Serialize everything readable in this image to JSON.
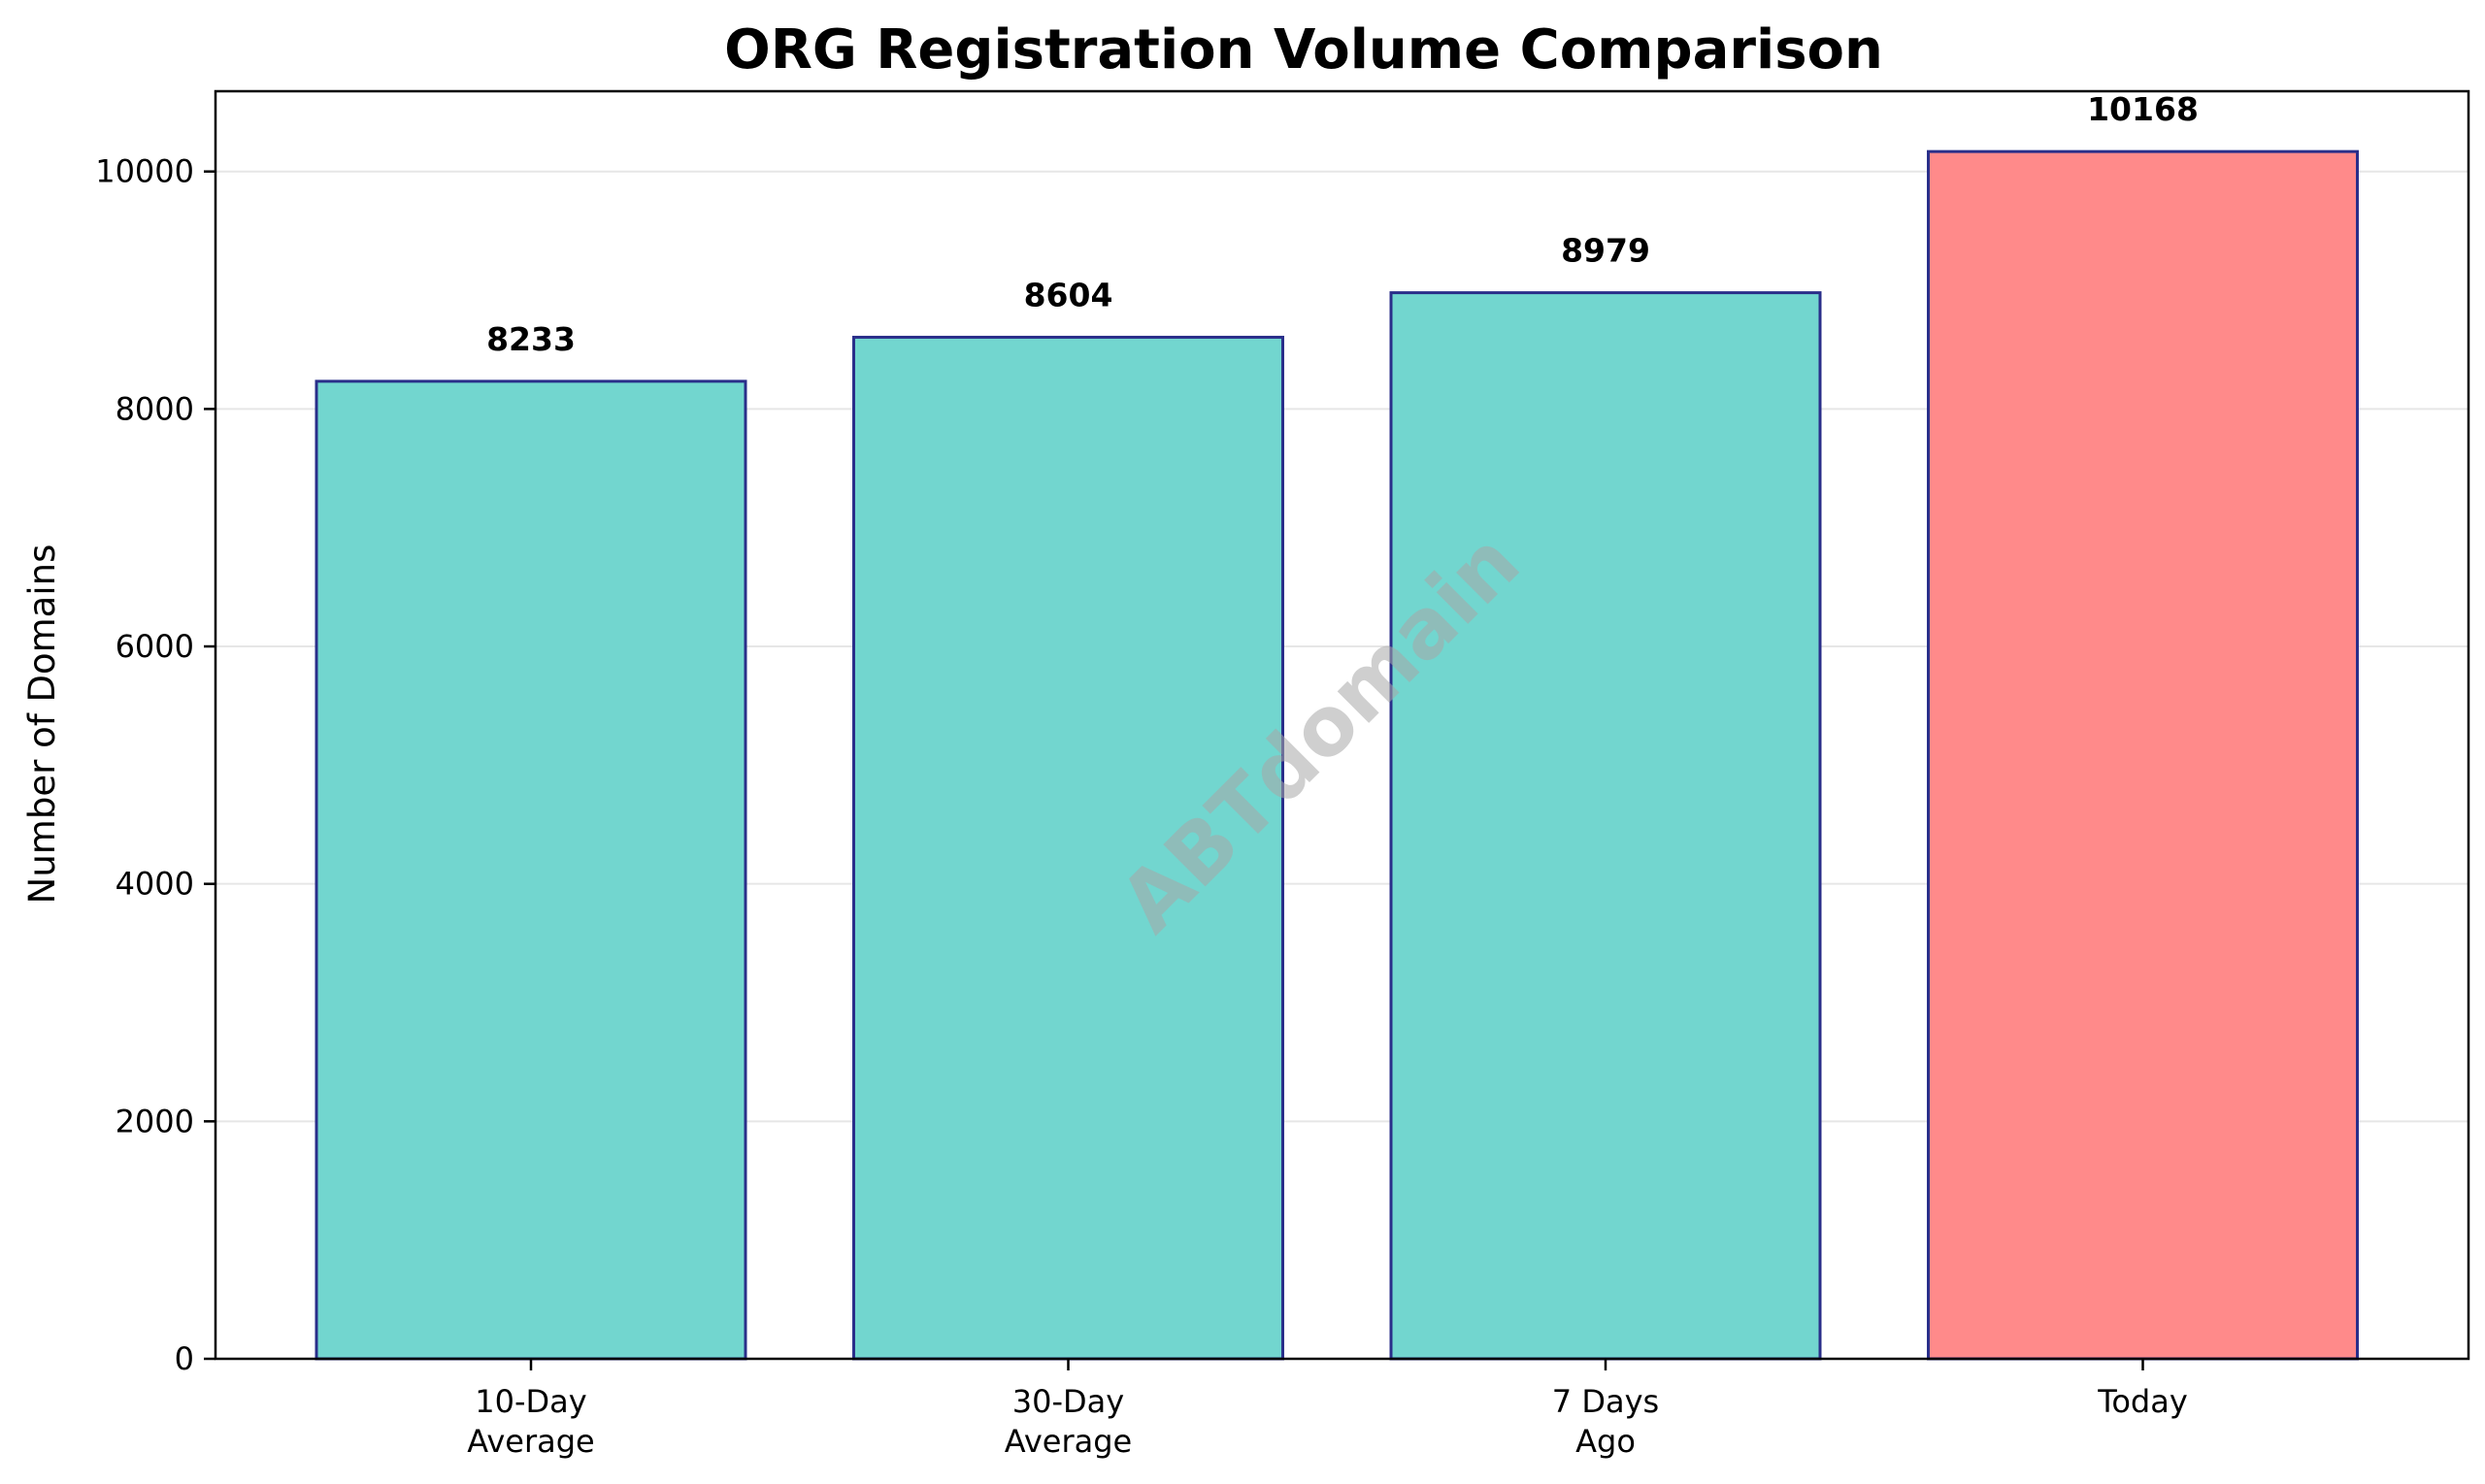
{
  "chart_data": {
    "type": "bar",
    "title": "ORG Registration Volume Comparison",
    "xlabel": "",
    "ylabel": "Number of Domains",
    "categories": [
      [
        "10-Day",
        "Average"
      ],
      [
        "30-Day",
        "Average"
      ],
      [
        "7 Days",
        "Ago"
      ],
      [
        "Today"
      ]
    ],
    "values": [
      8233,
      8604,
      8979,
      10168
    ],
    "value_labels": [
      "8233",
      "8604",
      "8979",
      "10168"
    ],
    "bar_colors": [
      "#72d6cf",
      "#72d6cf",
      "#72d6cf",
      "#ff8a8a"
    ],
    "bar_edge_color": "#2a2f8a",
    "ylim": [
      0,
      10676
    ],
    "yticks": [
      0,
      2000,
      4000,
      6000,
      8000,
      10000
    ],
    "ytick_labels": [
      "0",
      "2000",
      "4000",
      "6000",
      "8000",
      "10000"
    ],
    "grid": "horizontal",
    "grid_color": "#e6e6e6",
    "watermark": "ABTdomain",
    "watermark_color": "#a8a8a8"
  }
}
